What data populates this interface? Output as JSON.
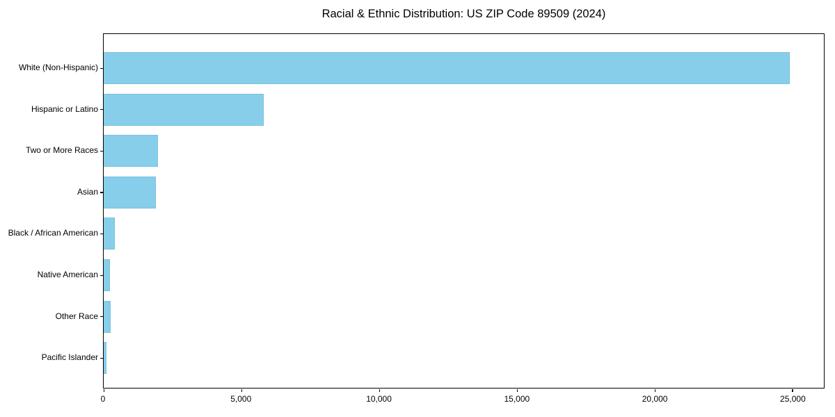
{
  "figure": {
    "background_color": "#ffffff",
    "text_color": "#000000"
  },
  "chart_data": {
    "type": "bar",
    "orientation": "horizontal",
    "title": "Racial & Ethnic Distribution: US ZIP Code 89509 (2024)",
    "xlabel": "",
    "ylabel": "",
    "categories": [
      "White (Non-Hispanic)",
      "Hispanic or Latino",
      "Two or More Races",
      "Asian",
      "Black / African American",
      "Native American",
      "Other Race",
      "Pacific Islander"
    ],
    "values": [
      24900,
      5810,
      1970,
      1890,
      400,
      230,
      255,
      110
    ],
    "xlim": [
      0,
      26150
    ],
    "xticks": [
      0,
      5000,
      10000,
      15000,
      20000,
      25000
    ],
    "xtick_labels": [
      "0",
      "5,000",
      "10,000",
      "15,000",
      "20,000",
      "25,000"
    ],
    "bar_color": "#87CEEB",
    "grid": false,
    "legend": null
  }
}
